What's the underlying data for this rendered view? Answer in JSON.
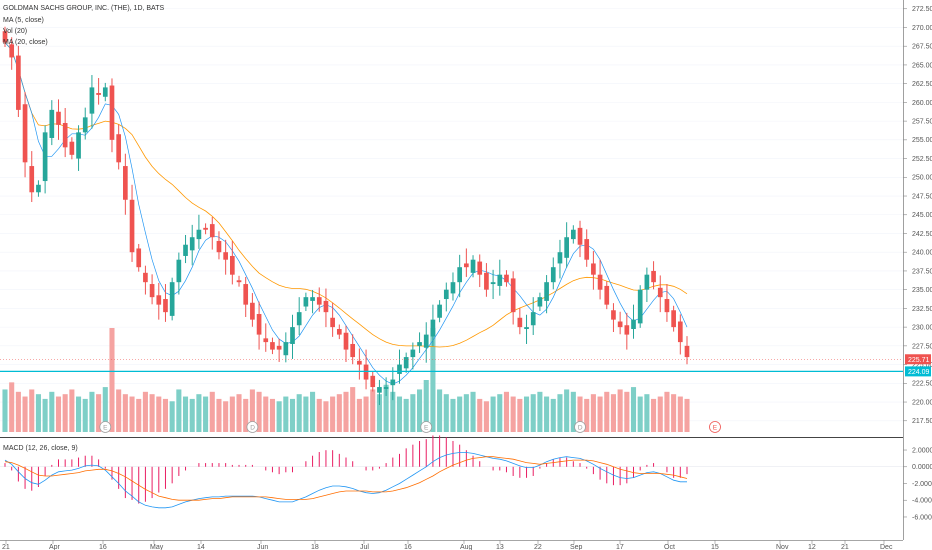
{
  "chart_data": {
    "type": "candlestick",
    "title": "GOLDMAN SACHS GROUP, INC. (THE), 1D, BATS",
    "legend": [
      "MA (5, close)",
      "Vol (20)",
      "MA (20, close)"
    ],
    "macd_label": "MACD (12, 26, close, 9)",
    "price_axis": {
      "ticks": [
        "272.50",
        "270.00",
        "267.50",
        "265.00",
        "262.50",
        "260.00",
        "257.50",
        "255.00",
        "252.50",
        "250.00",
        "247.50",
        "245.00",
        "242.50",
        "240.00",
        "237.50",
        "235.00",
        "232.50",
        "230.00",
        "227.50",
        "225.00",
        "222.50",
        "220.00",
        "217.50"
      ],
      "current_price": "225.71",
      "support_price": "224.09",
      "ylim": [
        216,
        273
      ]
    },
    "macd_axis": {
      "ticks": [
        "2.0000",
        "0.0000",
        "-2.0000",
        "-4.0000",
        "-6.0000"
      ],
      "ylim": [
        -6.6,
        2.6
      ]
    },
    "time_axis": {
      "labels": [
        "21",
        "Apr",
        "16",
        "May",
        "14",
        "Jun",
        "18",
        "Jul",
        "16",
        "Aug",
        "13",
        "22",
        "Sep",
        "17",
        "Oct",
        "15",
        "Nov",
        "12",
        "21",
        "Dec"
      ]
    },
    "earnings_markers": [
      "E",
      "D",
      "E",
      "D",
      "E"
    ],
    "series": [
      {
        "name": "Price",
        "values": [
          268,
          266,
          259,
          252,
          248,
          249,
          256,
          259,
          257,
          254,
          253,
          256,
          258,
          262,
          261,
          262,
          255,
          252,
          247,
          240,
          238,
          236,
          234,
          233,
          232,
          236,
          239,
          241,
          242,
          243,
          243,
          242,
          240,
          239,
          237,
          236,
          233,
          231,
          229,
          228,
          227,
          227,
          228,
          230,
          232,
          234,
          234,
          233,
          232,
          230,
          229,
          227,
          226,
          225,
          223,
          222,
          222,
          222,
          223,
          225,
          226,
          227,
          228,
          229,
          231,
          233,
          235,
          236,
          238,
          238,
          239,
          237,
          235,
          236,
          237,
          236,
          232,
          230,
          230,
          232,
          234,
          236,
          238,
          240,
          242,
          243,
          241,
          239,
          237,
          235,
          233,
          231,
          230,
          229,
          231,
          235,
          237,
          236,
          234,
          232,
          230,
          228,
          226
        ]
      },
      {
        "name": "Volume",
        "values": [
          18,
          21,
          17,
          15,
          18,
          16,
          14,
          17,
          15,
          16,
          18,
          15,
          14,
          17,
          16,
          19,
          44,
          18,
          16,
          15,
          14,
          17,
          16,
          15,
          14,
          13,
          18,
          15,
          14,
          16,
          15,
          17,
          14,
          13,
          15,
          16,
          14,
          18,
          17,
          15,
          14,
          13,
          15,
          14,
          16,
          15,
          17,
          14,
          13,
          15,
          16,
          17,
          19,
          14,
          15,
          18,
          16,
          20,
          17,
          15,
          14,
          16,
          18,
          22,
          44,
          18,
          16,
          14,
          15,
          16,
          17,
          14,
          13,
          15,
          16,
          17,
          15,
          14,
          15,
          16,
          17,
          15,
          14,
          16,
          18,
          17,
          15,
          14,
          16,
          15,
          17,
          16,
          18,
          17,
          19,
          15,
          16,
          14,
          15,
          17,
          16,
          15,
          14
        ]
      },
      {
        "name": "MACD",
        "values": [
          0.8,
          0.3,
          -0.6,
          -1.4,
          -1.9,
          -2.1,
          -1.6,
          -1.0,
          -0.6,
          -0.5,
          -0.4,
          -0.2,
          0.1,
          0.2,
          0.1,
          -0.4,
          -1.2,
          -2.0,
          -2.9,
          -3.5,
          -4.2,
          -4.6,
          -4.8,
          -4.9,
          -4.9,
          -4.8,
          -4.5,
          -4.2,
          -4.0,
          -3.8,
          -3.7,
          -3.6,
          -3.6,
          -3.5,
          -3.5,
          -3.5,
          -3.5,
          -3.5,
          -3.6,
          -3.8,
          -4.0,
          -4.2,
          -4.2,
          -4.2,
          -3.9,
          -3.6,
          -3.2,
          -2.8,
          -2.5,
          -2.3,
          -2.3,
          -2.4,
          -2.6,
          -2.9,
          -3.1,
          -3.2,
          -3.1,
          -2.8,
          -2.4,
          -2.0,
          -1.5,
          -1.0,
          -0.5,
          0.0,
          0.6,
          1.1,
          1.4,
          1.6,
          1.7,
          1.7,
          1.6,
          1.4,
          1.2,
          1.0,
          0.9,
          0.7,
          0.4,
          0.1,
          -0.1,
          -0.1,
          0.2,
          0.6,
          0.9,
          1.1,
          1.2,
          1.1,
          1.0,
          0.7,
          0.3,
          -0.2,
          -0.6,
          -1.0,
          -1.3,
          -1.4,
          -1.3,
          -1.0,
          -0.7,
          -0.6,
          -0.8,
          -1.2,
          -1.6,
          -1.8,
          -1.8
        ]
      },
      {
        "name": "Signal",
        "values": [
          0.6,
          0.5,
          0.2,
          -0.2,
          -0.6,
          -1.0,
          -1.1,
          -1.1,
          -1.0,
          -0.9,
          -0.8,
          -0.7,
          -0.5,
          -0.4,
          -0.3,
          -0.3,
          -0.5,
          -0.8,
          -1.2,
          -1.7,
          -2.2,
          -2.7,
          -3.1,
          -3.5,
          -3.7,
          -3.9,
          -4.0,
          -4.0,
          -4.0,
          -4.0,
          -3.9,
          -3.8,
          -3.8,
          -3.7,
          -3.6,
          -3.6,
          -3.6,
          -3.6,
          -3.6,
          -3.6,
          -3.7,
          -3.8,
          -3.9,
          -3.9,
          -3.9,
          -3.9,
          -3.8,
          -3.6,
          -3.4,
          -3.2,
          -3.0,
          -2.9,
          -2.9,
          -2.9,
          -2.9,
          -3.0,
          -3.0,
          -3.0,
          -2.9,
          -2.7,
          -2.5,
          -2.2,
          -1.9,
          -1.5,
          -1.1,
          -0.6,
          -0.2,
          0.2,
          0.5,
          0.8,
          1.0,
          1.1,
          1.2,
          1.2,
          1.1,
          1.0,
          0.9,
          0.7,
          0.5,
          0.4,
          0.3,
          0.4,
          0.5,
          0.6,
          0.7,
          0.8,
          0.8,
          0.8,
          0.7,
          0.5,
          0.3,
          0.0,
          -0.3,
          -0.5,
          -0.7,
          -0.8,
          -0.8,
          -0.8,
          -0.8,
          -0.9,
          -1.0,
          -1.2,
          -1.4
        ]
      }
    ],
    "colors": {
      "up": "#26a69a",
      "down": "#ef5350",
      "up_volume": "#7ecfc7",
      "down_volume": "#f5a3a1",
      "ma5": "#2196f3",
      "ma20": "#ff9800",
      "macd": "#2196f3",
      "signal": "#ff6d00",
      "hist": "#e91e63",
      "support": "#00bcd4",
      "current": "#ef5350"
    }
  }
}
